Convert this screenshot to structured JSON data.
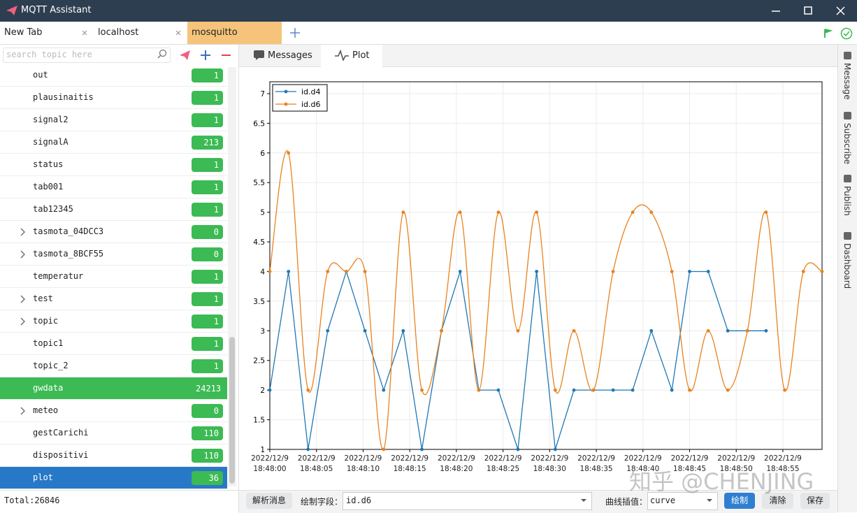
{
  "window": {
    "title": "MQTT Assistant"
  },
  "tabs": [
    {
      "label": "New Tab",
      "active": false
    },
    {
      "label": "localhost",
      "active": false
    },
    {
      "label": "mosquitto",
      "active": true
    }
  ],
  "sidebar": {
    "search_placeholder": "search topic here",
    "topics": [
      {
        "name": "out",
        "count": "1",
        "expandable": false,
        "state": "normal"
      },
      {
        "name": "plausinaitis",
        "count": "1",
        "expandable": false,
        "state": "normal"
      },
      {
        "name": "signal2",
        "count": "1",
        "expandable": false,
        "state": "normal"
      },
      {
        "name": "signalA",
        "count": "213",
        "expandable": false,
        "state": "normal"
      },
      {
        "name": "status",
        "count": "1",
        "expandable": false,
        "state": "normal"
      },
      {
        "name": "tab001",
        "count": "1",
        "expandable": false,
        "state": "normal"
      },
      {
        "name": "tab12345",
        "count": "1",
        "expandable": false,
        "state": "normal"
      },
      {
        "name": "tasmota_04DCC3",
        "count": "0",
        "expandable": true,
        "state": "normal"
      },
      {
        "name": "tasmota_8BCF55",
        "count": "0",
        "expandable": true,
        "state": "normal"
      },
      {
        "name": "temperatur",
        "count": "1",
        "expandable": false,
        "state": "normal"
      },
      {
        "name": "test",
        "count": "1",
        "expandable": true,
        "state": "normal"
      },
      {
        "name": "topic",
        "count": "1",
        "expandable": true,
        "state": "normal"
      },
      {
        "name": "topic1",
        "count": "1",
        "expandable": false,
        "state": "normal"
      },
      {
        "name": "topic_2",
        "count": "1",
        "expandable": false,
        "state": "normal"
      },
      {
        "name": "gwdata",
        "count": "24213",
        "expandable": false,
        "state": "highlighted"
      },
      {
        "name": "meteo",
        "count": "0",
        "expandable": true,
        "state": "normal"
      },
      {
        "name": "gestCarichi",
        "count": "110",
        "expandable": false,
        "state": "normal"
      },
      {
        "name": "dispositivi",
        "count": "110",
        "expandable": false,
        "state": "normal"
      },
      {
        "name": "plot",
        "count": "36",
        "expandable": false,
        "state": "selected"
      }
    ],
    "total": "Total:26846"
  },
  "view_tabs": [
    "Messages",
    "Plot"
  ],
  "side_tabs": [
    "Message",
    "Subscribe",
    "Publish",
    "Dashboard"
  ],
  "toolbar": {
    "parse_button": "解析消息",
    "field_label": "绘制字段：",
    "field_value": "id.d6",
    "interp_label": "曲线插值：",
    "interp_value": "curve",
    "draw_button": "绘制",
    "clear_button": "清除",
    "save_button": "保存"
  },
  "watermark": "知乎 @CHENJING",
  "chart_data": {
    "type": "line",
    "x": [
      0,
      2,
      4.1,
      6.2,
      8.2,
      10.2,
      12.2,
      14.3,
      16.3,
      18.4,
      20.4,
      22.4,
      24.5,
      26.6,
      28.6,
      30.6,
      32.6,
      34.7,
      36.8,
      38.9,
      40.9,
      43.1,
      45,
      47,
      49.1,
      51.2,
      53.2,
      55.2,
      57.2,
      59.2
    ],
    "xlim": [
      0,
      59.2
    ],
    "xticks": [
      {
        "value": 0,
        "label": "2022/12/9\n18:48:00"
      },
      {
        "value": 5,
        "label": "2022/12/9\n18:48:05"
      },
      {
        "value": 10,
        "label": "2022/12/9\n18:48:10"
      },
      {
        "value": 15,
        "label": "2022/12/9\n18:48:15"
      },
      {
        "value": 20,
        "label": "2022/12/9\n18:48:20"
      },
      {
        "value": 25,
        "label": "2022/12/9\n18:48:25"
      },
      {
        "value": 30,
        "label": "2022/12/9\n18:48:30"
      },
      {
        "value": 35,
        "label": "2022/12/9\n18:48:35"
      },
      {
        "value": 40,
        "label": "2022/12/9\n18:48:40"
      },
      {
        "value": 45,
        "label": "2022/12/9\n18:48:45"
      },
      {
        "value": 50,
        "label": "2022/12/9\n18:48:50"
      },
      {
        "value": 55,
        "label": "2022/12/9\n18:48:55"
      }
    ],
    "ylim": [
      1,
      7.2
    ],
    "yticks": [
      1,
      1.5,
      2,
      2.5,
      3,
      3.5,
      4,
      4.5,
      5,
      5.5,
      6,
      6.5,
      7
    ],
    "grid": true,
    "legend": "upper left",
    "series": [
      {
        "name": "id.d4",
        "color": "#1f77b4",
        "smooth": false,
        "values": [
          2,
          4,
          1,
          3,
          4,
          3,
          2,
          3,
          1,
          3,
          4,
          2,
          2,
          1,
          4,
          1,
          2,
          2,
          2,
          2,
          3,
          2,
          4,
          4,
          3,
          3,
          3,
          null,
          null,
          null
        ]
      },
      {
        "name": "id.d6",
        "color": "#e8821e",
        "smooth": true,
        "values": [
          4,
          6,
          2,
          4,
          4,
          4,
          1,
          5,
          2,
          3,
          5,
          2,
          5,
          3,
          5,
          2,
          3,
          2,
          4,
          5,
          5,
          4,
          2,
          3,
          2,
          3,
          5,
          2,
          4,
          4
        ]
      }
    ]
  }
}
